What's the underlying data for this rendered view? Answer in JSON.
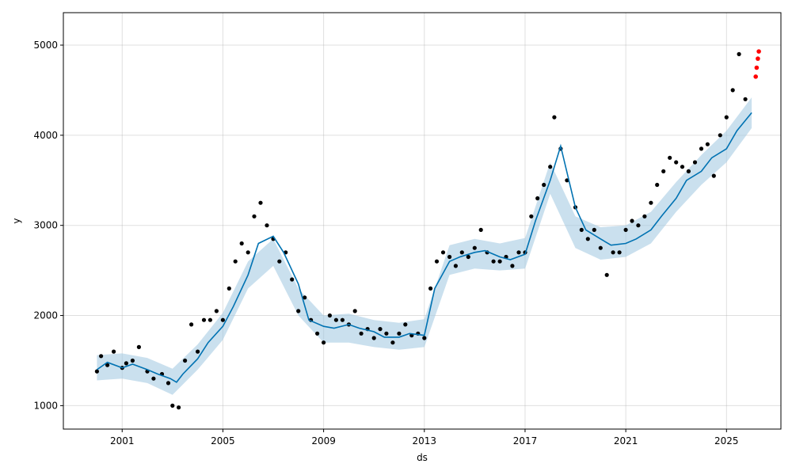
{
  "chart_data": {
    "type": "line",
    "xlabel": "ds",
    "ylabel": "y",
    "x_ticks": [
      "2001",
      "2005",
      "2009",
      "2013",
      "2017",
      "2021",
      "2025"
    ],
    "y_ticks": [
      "1000",
      "2000",
      "3000",
      "4000",
      "5000"
    ],
    "xlim": [
      "1998-09-01",
      "2027-03-01"
    ],
    "ylim": [
      740,
      5360
    ],
    "grid": true,
    "colors": {
      "observed": "#000000",
      "test_points": "#ff0000",
      "forecast": "#0072b2",
      "uncertainty": "#a6cbe3"
    },
    "series": [
      {
        "role": "forecast",
        "x": [
          "2000-01-01",
          "2000-06-01",
          "2001-01-01",
          "2001-06-01",
          "2002-01-01",
          "2002-06-01",
          "2002-12-01",
          "2003-03-01",
          "2003-06-01",
          "2004-01-01",
          "2004-06-01",
          "2005-01-01",
          "2005-06-01",
          "2006-01-01",
          "2006-06-01",
          "2007-01-01",
          "2007-06-01",
          "2008-01-01",
          "2008-06-01",
          "2009-01-01",
          "2009-06-01",
          "2010-01-01",
          "2010-06-01",
          "2011-01-01",
          "2011-06-01",
          "2012-01-01",
          "2012-06-01",
          "2013-01-01",
          "2013-06-01",
          "2014-01-01",
          "2014-06-01",
          "2015-01-01",
          "2015-06-01",
          "2016-01-01",
          "2016-06-01",
          "2017-01-01",
          "2017-06-01",
          "2018-01-01",
          "2018-06-01",
          "2019-01-01",
          "2019-06-01",
          "2020-01-01",
          "2020-06-01",
          "2021-01-01",
          "2021-06-01",
          "2022-01-01",
          "2022-06-01",
          "2023-01-01",
          "2023-06-01",
          "2024-01-01",
          "2024-06-01",
          "2025-01-01",
          "2025-06-01",
          "2026-01-01"
        ],
        "y": [
          1400,
          1480,
          1420,
          1460,
          1400,
          1350,
          1300,
          1260,
          1350,
          1520,
          1700,
          1880,
          2100,
          2450,
          2800,
          2880,
          2700,
          2350,
          1950,
          1880,
          1860,
          1900,
          1860,
          1820,
          1760,
          1760,
          1800,
          1780,
          2300,
          2600,
          2650,
          2700,
          2720,
          2650,
          2620,
          2680,
          3050,
          3500,
          3880,
          3200,
          2950,
          2850,
          2780,
          2800,
          2850,
          2950,
          3100,
          3300,
          3500,
          3600,
          3750,
          3850,
          4050,
          4250
        ]
      }
    ],
    "uncertainty_band": {
      "x": [
        "2000-01-01",
        "2001-01-01",
        "2002-01-01",
        "2003-01-01",
        "2004-01-01",
        "2005-01-01",
        "2006-01-01",
        "2007-01-01",
        "2008-01-01",
        "2009-01-01",
        "2010-01-01",
        "2011-01-01",
        "2012-01-01",
        "2013-01-01",
        "2014-01-01",
        "2015-01-01",
        "2016-01-01",
        "2017-01-01",
        "2018-01-01",
        "2019-01-01",
        "2020-01-01",
        "2021-01-01",
        "2022-01-01",
        "2023-01-01",
        "2024-01-01",
        "2025-01-01",
        "2026-01-01"
      ],
      "lower": [
        1280,
        1300,
        1250,
        1120,
        1400,
        1730,
        2300,
        2550,
        2000,
        1700,
        1700,
        1650,
        1620,
        1650,
        2450,
        2520,
        2500,
        2520,
        3350,
        2750,
        2620,
        2650,
        2800,
        3150,
        3450,
        3700,
        4080
      ],
      "upper": [
        1560,
        1580,
        1530,
        1410,
        1680,
        2030,
        2600,
        2850,
        2300,
        2000,
        2020,
        1950,
        1920,
        1960,
        2780,
        2850,
        2800,
        2860,
        3700,
        3100,
        2980,
        3000,
        3150,
        3480,
        3780,
        4050,
        4420
      ]
    },
    "observed_points": {
      "x": [
        "2000-01-01",
        "2000-03-01",
        "2000-06-01",
        "2000-09-01",
        "2001-01-01",
        "2001-03-01",
        "2001-06-01",
        "2001-09-01",
        "2002-01-01",
        "2002-04-01",
        "2002-08-01",
        "2002-11-01",
        "2003-01-01",
        "2003-04-01",
        "2003-07-01",
        "2003-10-01",
        "2004-01-01",
        "2004-04-01",
        "2004-07-01",
        "2004-10-01",
        "2005-01-01",
        "2005-04-01",
        "2005-07-01",
        "2005-10-01",
        "2006-01-01",
        "2006-04-01",
        "2006-07-01",
        "2006-10-01",
        "2007-01-01",
        "2007-04-01",
        "2007-07-01",
        "2007-10-01",
        "2008-01-01",
        "2008-04-01",
        "2008-07-01",
        "2008-10-01",
        "2009-01-01",
        "2009-04-01",
        "2009-07-01",
        "2009-10-01",
        "2010-01-01",
        "2010-04-01",
        "2010-07-01",
        "2010-10-01",
        "2011-01-01",
        "2011-04-01",
        "2011-07-01",
        "2011-10-01",
        "2012-01-01",
        "2012-04-01",
        "2012-07-01",
        "2012-10-01",
        "2013-01-01",
        "2013-04-01",
        "2013-07-01",
        "2013-10-01",
        "2014-01-01",
        "2014-04-01",
        "2014-07-01",
        "2014-10-01",
        "2015-01-01",
        "2015-04-01",
        "2015-07-01",
        "2015-10-01",
        "2016-01-01",
        "2016-04-01",
        "2016-07-01",
        "2016-10-01",
        "2017-01-01",
        "2017-04-01",
        "2017-07-01",
        "2017-10-01",
        "2018-01-01",
        "2018-03-01",
        "2018-06-01",
        "2018-09-01",
        "2019-01-01",
        "2019-04-01",
        "2019-07-01",
        "2019-10-01",
        "2020-01-01",
        "2020-04-01",
        "2020-07-01",
        "2020-10-01",
        "2021-01-01",
        "2021-04-01",
        "2021-07-01",
        "2021-10-01",
        "2022-01-01",
        "2022-04-01",
        "2022-07-01",
        "2022-10-01",
        "2023-01-01",
        "2023-04-01",
        "2023-07-01",
        "2023-10-01",
        "2024-01-01",
        "2024-04-01",
        "2024-07-01",
        "2024-10-01",
        "2025-01-01",
        "2025-04-01",
        "2025-07-01",
        "2025-10-01"
      ],
      "y": [
        1380,
        1550,
        1450,
        1600,
        1420,
        1470,
        1500,
        1650,
        1380,
        1300,
        1350,
        1250,
        1000,
        980,
        1500,
        1900,
        1600,
        1950,
        1950,
        2050,
        1950,
        2300,
        2600,
        2800,
        2700,
        3100,
        3250,
        3000,
        2850,
        2600,
        2700,
        2400,
        2050,
        2200,
        1950,
        1800,
        1700,
        2000,
        1950,
        1950,
        1900,
        2050,
        1800,
        1850,
        1750,
        1850,
        1800,
        1700,
        1800,
        1900,
        1780,
        1800,
        1750,
        2300,
        2600,
        2700,
        2650,
        2550,
        2700,
        2650,
        2750,
        2950,
        2700,
        2600,
        2600,
        2650,
        2550,
        2700,
        2700,
        3100,
        3300,
        3450,
        3650,
        4200,
        3850,
        3500,
        3200,
        2950,
        2850,
        2950,
        2750,
        2450,
        2700,
        2700,
        2950,
        3050,
        3000,
        3100,
        3250,
        3450,
        3600,
        3750,
        3700,
        3650,
        3600,
        3700,
        3850,
        3900,
        3550,
        4000,
        4200,
        4500,
        4900,
        4400
      ]
    },
    "test_points": {
      "x": [
        "2026-03-01",
        "2026-03-15",
        "2026-04-01",
        "2026-04-15"
      ],
      "y": [
        4650,
        4750,
        4850,
        4930
      ]
    }
  }
}
